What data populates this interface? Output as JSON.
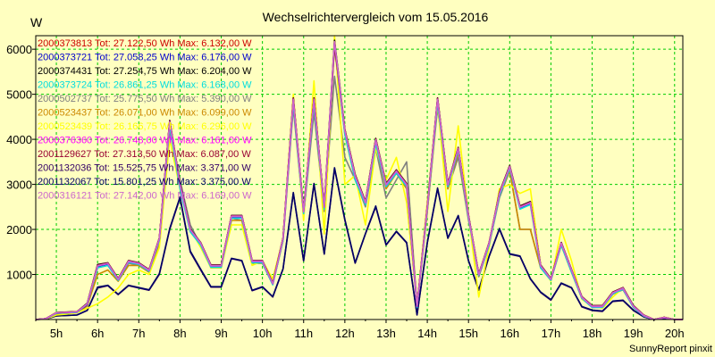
{
  "chart_data": {
    "type": "line",
    "title": "Wechselrichtervergleich vom 15.05.2016",
    "ylabel": "W",
    "xlabel": "",
    "ylim": [
      0,
      6300
    ],
    "xlim": [
      4.5,
      20.2
    ],
    "yticks": [
      1000,
      2000,
      3000,
      4000,
      5000,
      6000
    ],
    "ytick_labels": [
      "1000",
      "2000",
      "3000",
      "4000",
      "5000",
      "6000"
    ],
    "xticks": [
      5,
      6,
      7,
      8,
      9,
      10,
      11,
      12,
      13,
      14,
      15,
      16,
      17,
      18,
      19,
      20
    ],
    "xtick_labels": [
      "5h",
      "6h",
      "7h",
      "8h",
      "9h",
      "10h",
      "11h",
      "12h",
      "13h",
      "14h",
      "15h",
      "16h",
      "17h",
      "18h",
      "19h",
      "20h"
    ],
    "grid": true,
    "legend_placement": "top-left",
    "footer": "SunnyReport pinxit",
    "colors": {
      "background": "#ffffc0",
      "grid": "#00cc00",
      "axis": "#000000"
    },
    "x": [
      4.5,
      4.75,
      5.0,
      5.25,
      5.5,
      5.75,
      6.0,
      6.25,
      6.5,
      6.75,
      7.0,
      7.25,
      7.5,
      7.75,
      8.0,
      8.25,
      8.5,
      8.75,
      9.0,
      9.25,
      9.5,
      9.75,
      10.0,
      10.25,
      10.5,
      10.75,
      11.0,
      11.25,
      11.5,
      11.75,
      12.0,
      12.25,
      12.5,
      12.75,
      13.0,
      13.25,
      13.5,
      13.75,
      14.0,
      14.25,
      14.5,
      14.75,
      15.0,
      15.25,
      15.5,
      15.75,
      16.0,
      16.25,
      16.5,
      16.75,
      17.0,
      17.25,
      17.5,
      17.75,
      18.0,
      18.25,
      18.5,
      18.75,
      19.0,
      19.25,
      19.5,
      19.75,
      20.0,
      20.2
    ],
    "series": [
      {
        "name": "2000373813",
        "legend": "2000373813 Tot: 27.122,50 Wh Max: 6.132,00 W",
        "color": "#cc0000",
        "group": "high",
        "values": [
          0,
          20,
          150,
          160,
          170,
          350,
          1200,
          1250,
          900,
          1300,
          1250,
          1100,
          1800,
          4400,
          3000,
          2000,
          1700,
          1200,
          1200,
          2300,
          2300,
          1300,
          1300,
          800,
          1800,
          4900,
          2400,
          4900,
          2500,
          6100,
          4200,
          3200,
          2600,
          4000,
          3000,
          3300,
          3000,
          300,
          2500,
          4900,
          3000,
          3800,
          2300,
          1000,
          1700,
          2800,
          3400,
          2500,
          2600,
          1200,
          900,
          1700,
          1100,
          500,
          300,
          300,
          600,
          700,
          300,
          100,
          0,
          50,
          0,
          0
        ]
      },
      {
        "name": "2000373721",
        "legend": "2000373721 Tot: 27.058,25 Wh Max: 6.176,00 W",
        "color": "#0000cc",
        "group": "high",
        "values": [
          0,
          20,
          140,
          150,
          160,
          330,
          1180,
          1230,
          880,
          1280,
          1230,
          1080,
          1780,
          4350,
          2950,
          1980,
          1680,
          1180,
          1180,
          2280,
          2280,
          1280,
          1280,
          780,
          1780,
          4850,
          2380,
          4850,
          2480,
          6150,
          4150,
          3150,
          2580,
          3950,
          2980,
          3280,
          2980,
          280,
          2480,
          4850,
          2980,
          3780,
          2280,
          980,
          1680,
          2780,
          3380,
          2480,
          2580,
          1180,
          880,
          1680,
          1080,
          480,
          280,
          280,
          580,
          680,
          280,
          90,
          0,
          40,
          0,
          0
        ]
      },
      {
        "name": "2000374431",
        "legend": "2000374431 Tot: 27.254,75 Wh Max: 6.204,00 W",
        "color": "#000000",
        "group": "high",
        "values": [
          0,
          20,
          155,
          165,
          175,
          360,
          1220,
          1260,
          910,
          1310,
          1260,
          1110,
          1810,
          4420,
          3020,
          2010,
          1710,
          1210,
          1210,
          2310,
          2310,
          1310,
          1310,
          810,
          1810,
          4920,
          2420,
          4920,
          2520,
          6200,
          4220,
          3220,
          2620,
          4020,
          3020,
          3320,
          3020,
          310,
          2520,
          4920,
          3020,
          3820,
          2320,
          1010,
          1710,
          2820,
          3420,
          2520,
          2620,
          1210,
          910,
          1710,
          1110,
          510,
          310,
          310,
          610,
          710,
          310,
          100,
          0,
          50,
          0,
          0
        ]
      },
      {
        "name": "2000373724",
        "legend": "2000373724 Tot: 26.861,25 Wh Max: 6.168,00 W",
        "color": "#00dddd",
        "group": "high",
        "values": [
          0,
          15,
          140,
          150,
          160,
          340,
          1150,
          1200,
          870,
          1270,
          1220,
          1070,
          1760,
          4300,
          2900,
          1950,
          1650,
          1160,
          1160,
          2250,
          2250,
          1260,
          1260,
          770,
          1760,
          4800,
          2350,
          4800,
          2450,
          6100,
          4100,
          3100,
          2550,
          3900,
          2950,
          3250,
          2950,
          270,
          2450,
          4800,
          2950,
          3750,
          2250,
          970,
          1650,
          2750,
          3350,
          2450,
          2550,
          1150,
          870,
          1650,
          1050,
          470,
          270,
          270,
          570,
          670,
          270,
          80,
          0,
          40,
          0,
          0
        ]
      },
      {
        "name": "2000502737",
        "legend": "2000502737 Tot: 25.775,50 Wh Max: 5.390,00 W",
        "color": "#808080",
        "group": "mid",
        "values": [
          0,
          20,
          150,
          160,
          170,
          350,
          1150,
          1200,
          870,
          1250,
          1200,
          1050,
          1700,
          4200,
          3100,
          2100,
          1650,
          1150,
          1150,
          2250,
          2200,
          1250,
          1250,
          780,
          1750,
          4700,
          2300,
          4600,
          2400,
          5400,
          3600,
          3100,
          2500,
          3800,
          2700,
          3100,
          3500,
          300,
          2400,
          4700,
          2900,
          3600,
          2200,
          950,
          1650,
          2700,
          3300,
          2000,
          2000,
          1150,
          880,
          1650,
          1050,
          480,
          280,
          280,
          560,
          660,
          280,
          80,
          0,
          40,
          0,
          0
        ]
      },
      {
        "name": "2000523437",
        "legend": "2000523437 Tot: 26.071,00 Wh Max: 6.099,00 W",
        "color": "#cc8800",
        "group": "mid",
        "values": [
          0,
          15,
          120,
          130,
          150,
          300,
          1000,
          1100,
          850,
          1200,
          1200,
          1050,
          1700,
          4300,
          2950,
          1950,
          1650,
          1150,
          1150,
          2200,
          2200,
          1250,
          1250,
          780,
          1750,
          4800,
          2350,
          4800,
          2450,
          6050,
          4100,
          3100,
          2550,
          3900,
          2900,
          3250,
          2900,
          280,
          2400,
          4750,
          2900,
          3700,
          2250,
          950,
          1650,
          2750,
          3300,
          2000,
          2000,
          1150,
          870,
          1650,
          1050,
          470,
          270,
          270,
          570,
          670,
          270,
          80,
          0,
          40,
          0,
          0
        ]
      },
      {
        "name": "2000523439",
        "legend": "2000523439 Tot: 26.166,75 Wh Max: 6.296,00 W",
        "color": "#ffff00",
        "group": "mid",
        "values": [
          0,
          15,
          100,
          120,
          150,
          250,
          350,
          500,
          700,
          1000,
          1100,
          1000,
          1600,
          4000,
          2900,
          2000,
          1600,
          1150,
          1150,
          2100,
          2100,
          1200,
          1300,
          900,
          1800,
          5000,
          2200,
          5300,
          1900,
          6300,
          3000,
          3200,
          2100,
          3800,
          3100,
          3600,
          2600,
          320,
          2600,
          4800,
          2400,
          4300,
          2300,
          500,
          1600,
          2900,
          3000,
          2800,
          2900,
          1200,
          850,
          2000,
          1300,
          450,
          300,
          250,
          500,
          700,
          300,
          100,
          0,
          50,
          0,
          0
        ]
      },
      {
        "name": "2000376360",
        "legend": "2000376360 Tot: 26.748,00 Wh Max: 6.161,00 W",
        "color": "#ff00ff",
        "group": "high",
        "values": [
          0,
          20,
          150,
          155,
          170,
          345,
          1190,
          1240,
          890,
          1290,
          1240,
          1090,
          1790,
          4380,
          2980,
          1990,
          1690,
          1190,
          1190,
          2290,
          2290,
          1290,
          1290,
          790,
          1790,
          4880,
          2390,
          4880,
          2490,
          6160,
          4180,
          3180,
          2590,
          3980,
          2990,
          3290,
          2990,
          290,
          2490,
          4880,
          2990,
          3790,
          2290,
          990,
          1690,
          2790,
          3390,
          2490,
          2590,
          1190,
          890,
          1690,
          1090,
          490,
          290,
          290,
          590,
          690,
          290,
          90,
          0,
          40,
          0,
          0
        ]
      },
      {
        "name": "2001129627",
        "legend": "2001129627 Tot: 27.313,50 Wh Max: 6.087,00 W",
        "color": "#990033",
        "group": "high",
        "values": [
          0,
          20,
          152,
          162,
          172,
          352,
          1205,
          1255,
          905,
          1305,
          1255,
          1105,
          1805,
          4410,
          3010,
          2005,
          1705,
          1205,
          1205,
          2305,
          2305,
          1305,
          1305,
          805,
          1805,
          4910,
          2410,
          4910,
          2510,
          6080,
          4210,
          3210,
          2610,
          4010,
          3010,
          3310,
          3010,
          305,
          2510,
          4910,
          3010,
          3810,
          2310,
          1005,
          1705,
          2810,
          3410,
          2510,
          2610,
          1205,
          905,
          1705,
          1105,
          505,
          305,
          305,
          605,
          705,
          305,
          100,
          0,
          50,
          0,
          0
        ]
      },
      {
        "name": "2001132036",
        "legend": "2001132036 Tot: 15.525,75 Wh Max: 3.371,00 W",
        "color": "#330066",
        "group": "low",
        "values": [
          0,
          10,
          80,
          90,
          100,
          200,
          700,
          750,
          550,
          750,
          700,
          650,
          1000,
          2000,
          2700,
          1500,
          1100,
          720,
          720,
          1350,
          1300,
          640,
          720,
          500,
          1120,
          2800,
          1300,
          3000,
          1450,
          3350,
          2200,
          1250,
          1900,
          2500,
          1650,
          1950,
          1700,
          100,
          1700,
          2900,
          1800,
          2300,
          1300,
          650,
          1400,
          2000,
          1450,
          1400,
          900,
          600,
          430,
          800,
          700,
          280,
          200,
          180,
          400,
          420,
          200,
          60,
          0,
          30,
          0,
          0
        ]
      },
      {
        "name": "2001132067",
        "legend": "2001132067 Tot: 15.801,25 Wh Max: 3.375,00 W",
        "color": "#000066",
        "group": "low",
        "values": [
          0,
          10,
          82,
          92,
          102,
          205,
          720,
          760,
          560,
          760,
          710,
          660,
          1020,
          2020,
          2720,
          1520,
          1120,
          730,
          730,
          1360,
          1310,
          650,
          730,
          510,
          1130,
          2820,
          1310,
          3020,
          1460,
          3370,
          2220,
          1260,
          1910,
          2520,
          1660,
          1960,
          1710,
          110,
          1710,
          2920,
          1810,
          2310,
          1310,
          660,
          1410,
          2020,
          1460,
          1410,
          910,
          610,
          440,
          810,
          710,
          290,
          210,
          190,
          410,
          430,
          210,
          60,
          0,
          30,
          0,
          0
        ]
      },
      {
        "name": "2000316121",
        "legend": "2000316121 Tot: 27.142,00 Wh Max: 6.169,00 W",
        "color": "#cc66cc",
        "group": "high",
        "values": [
          0,
          18,
          148,
          158,
          168,
          348,
          1195,
          1245,
          895,
          1295,
          1245,
          1095,
          1795,
          4390,
          2990,
          1995,
          1695,
          1195,
          1195,
          2295,
          2295,
          1295,
          1295,
          795,
          1795,
          4890,
          2395,
          4890,
          2495,
          6170,
          4190,
          3190,
          2595,
          3990,
          2995,
          3295,
          2995,
          295,
          2495,
          4890,
          2995,
          3795,
          2295,
          995,
          1695,
          2795,
          3395,
          2495,
          2595,
          1195,
          895,
          1695,
          1095,
          495,
          295,
          295,
          595,
          695,
          295,
          95,
          0,
          45,
          0,
          0
        ]
      }
    ]
  }
}
